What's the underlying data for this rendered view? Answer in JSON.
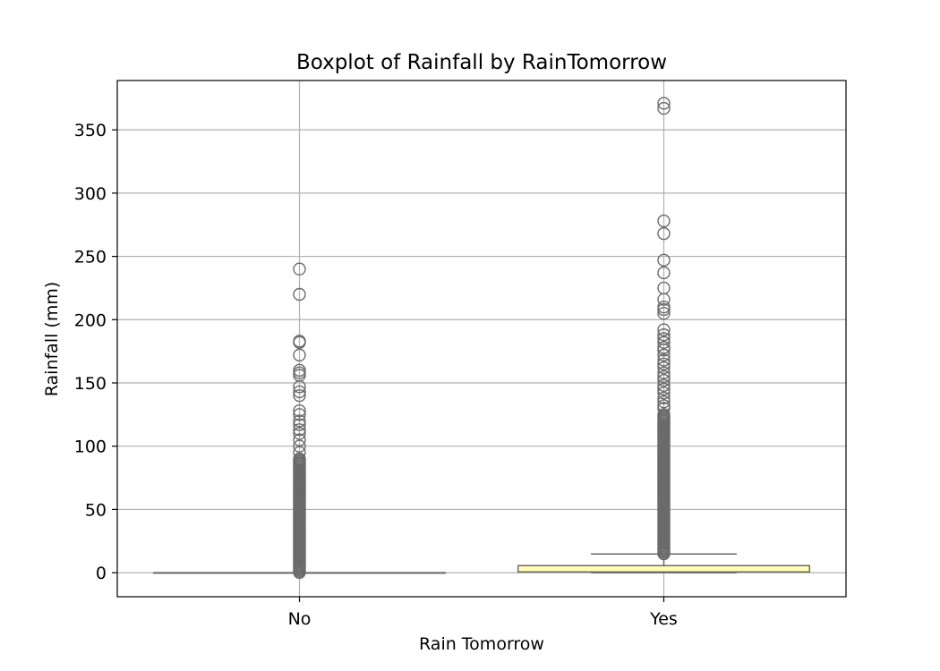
{
  "chart_data": {
    "type": "box",
    "title": "Boxplot of Rainfall by RainTomorrow",
    "xlabel": "Rain Tomorrow",
    "ylabel": "Rainfall (mm)",
    "ylim": [
      -19,
      389
    ],
    "yticks": [
      0,
      50,
      100,
      150,
      200,
      250,
      300,
      350
    ],
    "grid": true,
    "categories": [
      "No",
      "Yes"
    ],
    "colors": {
      "No": "#8da0cb",
      "Yes": "#ffffb3"
    },
    "boxes": [
      {
        "category": "No",
        "whisker_low": 0,
        "q1": 0,
        "median": 0,
        "q3": 0,
        "whisker_high": 0,
        "outliers_dense_range": [
          0.2,
          90
        ],
        "outliers": [
          240,
          220,
          183,
          182,
          172,
          160,
          158,
          156,
          147,
          143,
          140,
          128,
          125,
          120,
          117,
          113,
          110,
          105,
          100,
          95
        ]
      },
      {
        "category": "Yes",
        "whisker_low": 0,
        "q1": 0.6,
        "median": 0.6,
        "q3": 5.6,
        "whisker_high": 14.8,
        "outliers_dense_range": [
          14.9,
          125
        ],
        "outliers": [
          371,
          367,
          278,
          268,
          247,
          237,
          225,
          216,
          210,
          208,
          205,
          192,
          188,
          185,
          182,
          178,
          176,
          172,
          168,
          165,
          162,
          158,
          155,
          152,
          148,
          145,
          142,
          138,
          135,
          132,
          130
        ]
      }
    ]
  }
}
